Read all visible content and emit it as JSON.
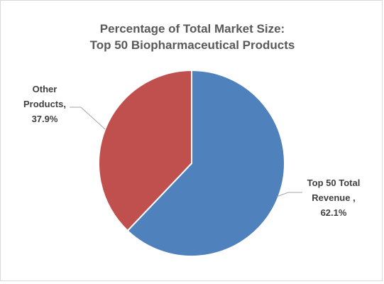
{
  "chart_data": {
    "type": "pie",
    "title_lines": [
      "Percentage of Total Market Size:",
      "Top 50 Biopharmaceutical Products"
    ],
    "slices": [
      {
        "label_lines": [
          "Top 50 Total",
          "Revenue ,",
          "62.1%"
        ],
        "value": 62.1,
        "color": "#4f81bd"
      },
      {
        "label_lines": [
          "Other",
          "Products,",
          "37.9%"
        ],
        "value": 37.9,
        "color": "#c0504d"
      }
    ],
    "start_angle": "12 o'clock",
    "direction": "clockwise",
    "slice_border_color": "#ffffff",
    "legend": "none"
  }
}
